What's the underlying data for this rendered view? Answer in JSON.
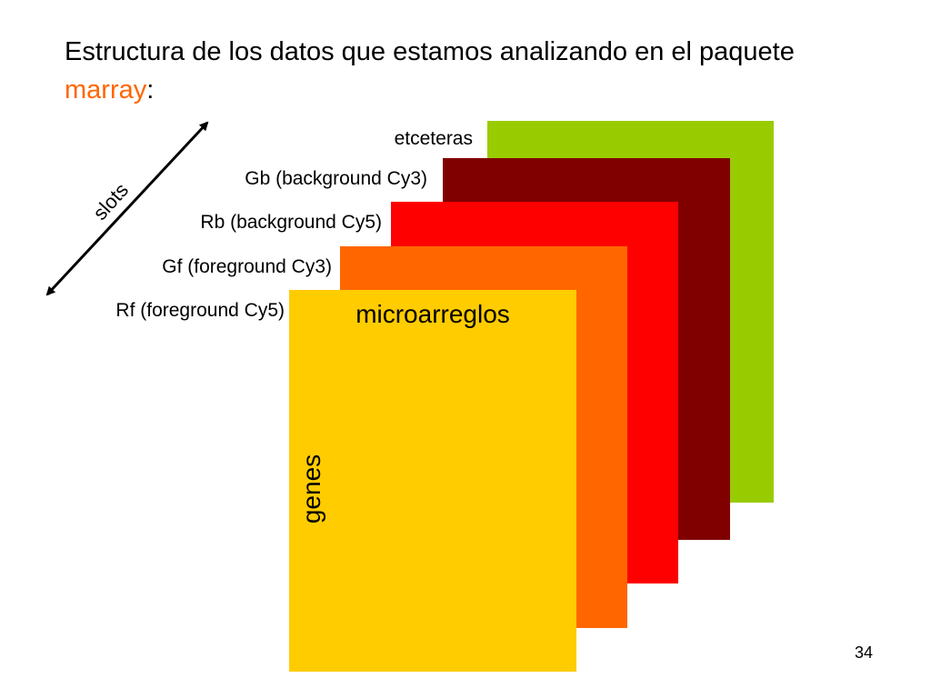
{
  "title": {
    "text_before": "Estructura de los datos que estamos analizando en el paquete ",
    "highlight": "marray",
    "text_after": ":"
  },
  "layers": [
    {
      "label": "etceteras",
      "color": "#99cc00"
    },
    {
      "label": "Gb (background Cy3)",
      "color": "#800000"
    },
    {
      "label": "Rb (background Cy5)",
      "color": "#ff0000"
    },
    {
      "label": "Gf (foreground Cy3)",
      "color": "#ff6600"
    },
    {
      "label": "Rf (foreground Cy5)",
      "color": "#ffcc00"
    }
  ],
  "axes": {
    "columns": "microarreglos",
    "rows": "genes",
    "depth": "slots"
  },
  "page_number": "34"
}
